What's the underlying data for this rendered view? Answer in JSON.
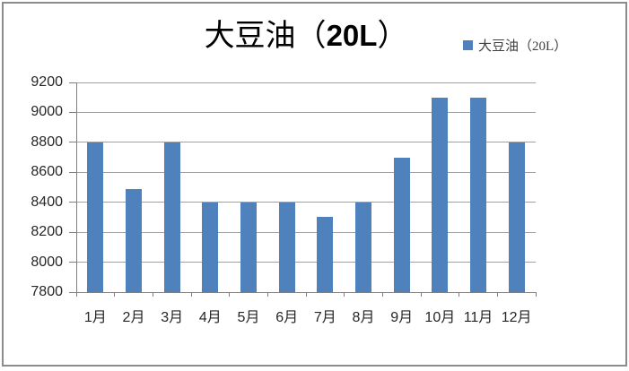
{
  "window": {
    "background": "#ffffff",
    "border_color": "#8c8c8c"
  },
  "title": {
    "prefix": "大豆油（",
    "number": "20L",
    "suffix": "）",
    "full": "大豆油（20L）"
  },
  "legend": {
    "marker": "blue-square",
    "marker_color": "#4F81BD",
    "label": "大豆油（20L）"
  },
  "chart_data": {
    "type": "bar",
    "title": "大豆油（20L）",
    "categories": [
      "1月",
      "2月",
      "3月",
      "4月",
      "5月",
      "6月",
      "7月",
      "8月",
      "9月",
      "10月",
      "11月",
      "12月"
    ],
    "series": [
      {
        "name": "大豆油（20L）",
        "values": [
          8800,
          8490,
          8800,
          8400,
          8400,
          8400,
          8300,
          8400,
          8700,
          9100,
          9100,
          8800
        ]
      }
    ],
    "xlabel": "",
    "ylabel": "",
    "ylim": [
      7800,
      9200
    ],
    "yticks": [
      7800,
      8000,
      8200,
      8400,
      8600,
      8800,
      9000,
      9200
    ],
    "grid": true,
    "legend_position": "top-right",
    "bar_color": "#4F81BD",
    "gridline_color": "#A0A0A0",
    "axis_color": "#7F7F7F",
    "tick_label_color": "#262626"
  }
}
